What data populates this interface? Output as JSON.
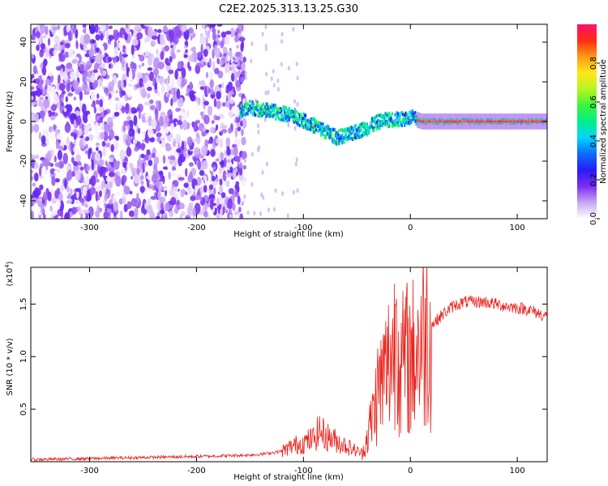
{
  "chart_data": [
    {
      "type": "heatmap",
      "title": "C2E2.2025.313.13.25.G30",
      "xlabel": "Height of straight line (km)",
      "ylabel": "Frequency (Hz)",
      "xlim": [
        -355,
        128
      ],
      "ylim": [
        -49,
        49
      ],
      "xticks": [
        -300,
        -200,
        -100,
        0,
        100
      ],
      "yticks": [
        -40,
        -20,
        0,
        20,
        40
      ],
      "colorbar": {
        "label": "Normalized spectral amplitude",
        "range": [
          0.0,
          1.0
        ],
        "ticks": [
          "0.0",
          "0.2",
          "0.4",
          "0.6",
          "0.8"
        ],
        "colors": [
          "#ffffff",
          "#c9a6f5",
          "#7a2cf0",
          "#2a1bf5",
          "#0a6cff",
          "#00d6ff",
          "#00f08a",
          "#3cf53c",
          "#b8f51e",
          "#ffe81a",
          "#ff9b12",
          "#ff2a14",
          "#ff106e"
        ]
      },
      "trace": {
        "description": "signal ridge center frequency vs height",
        "x": [
          -165,
          -150,
          -130,
          -110,
          -95,
          -80,
          -70,
          -60,
          -50,
          -40,
          -30,
          -20,
          -10,
          0,
          10,
          30,
          60,
          90,
          128
        ],
        "y": [
          4,
          7,
          5,
          3,
          -1,
          -5,
          -8,
          -7,
          -5,
          -3,
          0,
          1,
          1,
          2,
          0,
          0,
          0,
          0,
          0
        ]
      }
    },
    {
      "type": "line",
      "title": "",
      "xlabel": "Height of straight line (km)",
      "ylabel": "SNR (10 * v/v)",
      "y_multiplier": "(x10",
      "y_multiplier_exp": "4",
      "y_multiplier_close": ")",
      "xlim": [
        -355,
        128
      ],
      "ylim": [
        0,
        1.85
      ],
      "xticks": [
        -300,
        -200,
        -100,
        0,
        100
      ],
      "yticks": [
        0.5,
        1.0,
        1.5
      ],
      "ytick_labels": [
        "0.5",
        "1.0",
        "1.5"
      ],
      "color": "#e8221c",
      "series": [
        {
          "name": "SNR",
          "x": [
            -355,
            -300,
            -250,
            -200,
            -160,
            -140,
            -120,
            -110,
            -100,
            -90,
            -85,
            -80,
            -70,
            -60,
            -50,
            -45,
            -40,
            -35,
            -30,
            -25,
            -20,
            -15,
            -12,
            -10,
            -5,
            0,
            10,
            20,
            30,
            40,
            50,
            70,
            90,
            110,
            128
          ],
          "y": [
            0.02,
            0.03,
            0.04,
            0.05,
            0.06,
            0.07,
            0.1,
            0.15,
            0.18,
            0.22,
            0.3,
            0.25,
            0.2,
            0.15,
            0.1,
            0.08,
            0.25,
            0.45,
            0.7,
            0.8,
            0.95,
            1.1,
            1.75,
            0.8,
            1.0,
            0.95,
            1.15,
            1.3,
            1.4,
            1.48,
            1.52,
            1.52,
            1.48,
            1.45,
            1.38
          ]
        }
      ]
    }
  ]
}
